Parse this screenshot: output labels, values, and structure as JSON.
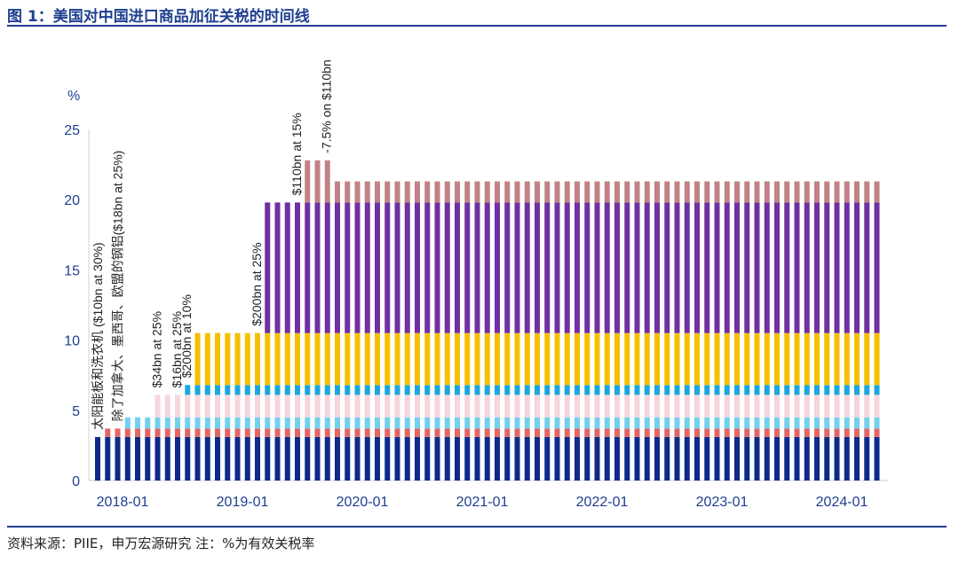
{
  "title": "图 1：美国对中国进口商品加征关税的时间线",
  "source": "资料来源：PIIE，申万宏源研究 注：%为有效关税率",
  "chart_data": {
    "type": "bar",
    "stacked": true,
    "ylabel": "%",
    "ylim": [
      0,
      25
    ],
    "yticks": [
      0,
      5,
      10,
      15,
      20,
      25
    ],
    "grid": false,
    "x_start": "2018-01",
    "x_end": "2024-07",
    "xticks": [
      "2018-01",
      "2019-01",
      "2020-01",
      "2021-01",
      "2022-01",
      "2023-01",
      "2024-01"
    ],
    "layers": [
      {
        "color": "#0d2a8a",
        "start": "2018-01",
        "value": 3.1
      },
      {
        "color": "#e06666",
        "start": "2018-02",
        "value": 0.6
      },
      {
        "color": "#72d0ee",
        "start": "2018-04",
        "value": 0.8
      },
      {
        "color": "#f6d5dc",
        "start": "2018-07",
        "value": 1.6
      },
      {
        "color": "#1aa7de",
        "start": "2018-10",
        "value": 0.7
      },
      {
        "color": "#f5c000",
        "start": "2018-11",
        "value": 3.7
      },
      {
        "color": "#7030a0",
        "start": "2019-06",
        "value": 9.3
      },
      {
        "color": "#c08286",
        "start": "2019-10",
        "end": "2019-12",
        "value": 3.0
      },
      {
        "color": "#c08286",
        "start": "2020-01",
        "value": 1.5
      }
    ],
    "annotations": [
      {
        "text": "太阳能板和洗衣机 ($10bn at 30%)",
        "month": "2018-01"
      },
      {
        "text": "除了加拿大、墨西哥、欧盟的钢铝($18bn at 25%)",
        "month": "2018-03"
      },
      {
        "text": "$34bn at 25%",
        "month": "2018-07"
      },
      {
        "text": "$16bn at 25%",
        "month": "2018-09"
      },
      {
        "text": "$200bn at 10%",
        "month": "2018-10"
      },
      {
        "text": "$200bn at 25%",
        "month": "2019-05"
      },
      {
        "text": "$110bn at  15%",
        "month": "2019-09"
      },
      {
        "text": "-7.5% on $110bn",
        "month": "2019-12"
      }
    ]
  }
}
